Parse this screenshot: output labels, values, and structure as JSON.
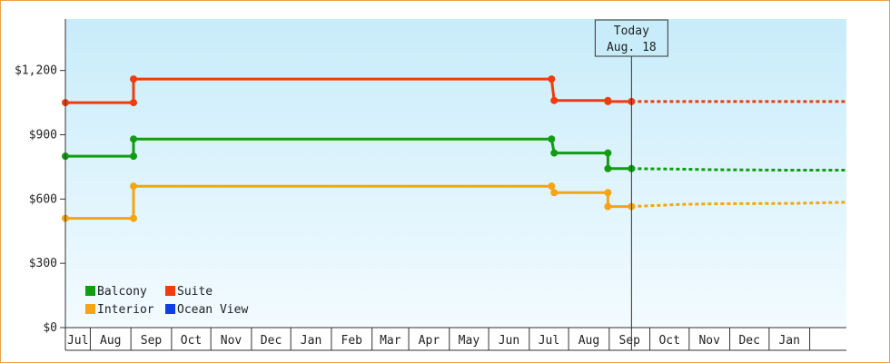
{
  "colors": {
    "border": "#e8a24a",
    "plot_top": "#c8ecfa",
    "plot_bottom": "#f3fbff",
    "balcony": "#119c11",
    "suite": "#f03c0c",
    "interior": "#f5a50f",
    "ocean_view": "#0d3fe8",
    "axis": "#333333"
  },
  "chart_data": {
    "type": "line",
    "title": "",
    "xlabel": "",
    "ylabel": "",
    "ylim": [
      0,
      1440
    ],
    "y_ticks": [
      0,
      300,
      600,
      900,
      1200
    ],
    "y_tick_labels": [
      "$0",
      "$300",
      "$600",
      "$900",
      "$1,200"
    ],
    "month_labels": [
      "Jul",
      "Aug",
      "Sep",
      "Oct",
      "Nov",
      "Dec",
      "Jan",
      "Feb",
      "Mar",
      "Apr",
      "May",
      "Jun",
      "Jul",
      "Aug",
      "Sep",
      "Oct",
      "Nov",
      "Dec",
      "Jan"
    ],
    "x_range": [
      "2024-06-12",
      "2026-01-29"
    ],
    "today": {
      "date": "2025-08-18",
      "line1": "Today",
      "line2": "Aug. 18"
    },
    "grid": false,
    "legend": {
      "placement": "bottom-left",
      "items": [
        {
          "name": "Balcony",
          "series": "balcony"
        },
        {
          "name": "Suite",
          "series": "suite"
        },
        {
          "name": "Interior",
          "series": "interior"
        },
        {
          "name": "Ocean View",
          "series": "ocean_view"
        }
      ]
    },
    "series": [
      {
        "name": "Suite",
        "key": "suite",
        "points": [
          [
            "2024-06-12",
            1050
          ],
          [
            "2024-08-03",
            1050
          ],
          [
            "2024-08-03",
            1160
          ],
          [
            "2025-06-18",
            1160
          ],
          [
            "2025-06-20",
            1060
          ],
          [
            "2025-07-31",
            1060
          ],
          [
            "2025-07-31",
            1055
          ],
          [
            "2025-08-18",
            1055
          ]
        ],
        "markers": [
          [
            "2024-06-12",
            1050
          ],
          [
            "2024-08-03",
            1050
          ],
          [
            "2024-08-03",
            1160
          ],
          [
            "2025-06-18",
            1160
          ],
          [
            "2025-06-20",
            1060
          ],
          [
            "2025-07-31",
            1060
          ],
          [
            "2025-07-31",
            1055
          ],
          [
            "2025-08-18",
            1055
          ]
        ],
        "forecast": [
          [
            "2025-08-18",
            1055
          ],
          [
            "2026-01-29",
            1055
          ]
        ]
      },
      {
        "name": "Balcony",
        "key": "balcony",
        "points": [
          [
            "2024-06-12",
            800
          ],
          [
            "2024-08-03",
            800
          ],
          [
            "2024-08-03",
            880
          ],
          [
            "2025-06-18",
            880
          ],
          [
            "2025-06-20",
            815
          ],
          [
            "2025-07-31",
            815
          ],
          [
            "2025-07-31",
            742
          ],
          [
            "2025-08-18",
            742
          ]
        ],
        "markers": [
          [
            "2024-06-12",
            800
          ],
          [
            "2024-08-03",
            800
          ],
          [
            "2024-08-03",
            880
          ],
          [
            "2025-06-18",
            880
          ],
          [
            "2025-06-20",
            815
          ],
          [
            "2025-07-31",
            815
          ],
          [
            "2025-07-31",
            742
          ],
          [
            "2025-08-18",
            742
          ]
        ],
        "forecast": [
          [
            "2025-08-18",
            742
          ],
          [
            "2025-09-20",
            740
          ],
          [
            "2025-10-20",
            737
          ],
          [
            "2025-12-15",
            735
          ],
          [
            "2026-01-29",
            735
          ]
        ]
      },
      {
        "name": "Interior",
        "key": "interior",
        "points": [
          [
            "2024-06-12",
            510
          ],
          [
            "2024-08-03",
            510
          ],
          [
            "2024-08-03",
            660
          ],
          [
            "2025-06-18",
            660
          ],
          [
            "2025-06-20",
            630
          ],
          [
            "2025-07-31",
            630
          ],
          [
            "2025-07-31",
            565
          ],
          [
            "2025-08-18",
            565
          ]
        ],
        "markers": [
          [
            "2024-06-12",
            510
          ],
          [
            "2024-08-03",
            510
          ],
          [
            "2024-08-03",
            660
          ],
          [
            "2025-06-18",
            660
          ],
          [
            "2025-06-20",
            630
          ],
          [
            "2025-07-31",
            630
          ],
          [
            "2025-07-31",
            565
          ],
          [
            "2025-08-18",
            565
          ]
        ],
        "forecast": [
          [
            "2025-08-18",
            565
          ],
          [
            "2025-09-25",
            575
          ],
          [
            "2025-10-25",
            578
          ],
          [
            "2025-12-20",
            580
          ],
          [
            "2026-01-29",
            585
          ]
        ]
      }
    ]
  }
}
